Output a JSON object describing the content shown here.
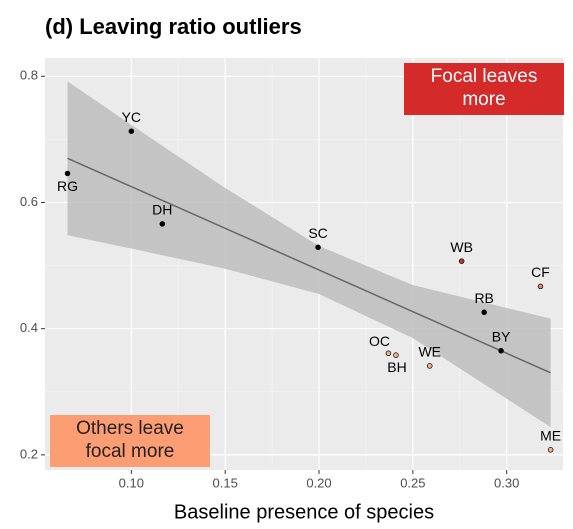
{
  "chart_data": {
    "type": "scatter",
    "title": "(d) Leaving ratio outliers",
    "x_label": "Baseline presence of species",
    "xlim": [
      0.054,
      0.33
    ],
    "ylim": [
      0.176,
      0.829
    ],
    "xticks": [
      {
        "value": 0.1,
        "label": "0.10"
      },
      0.15,
      {
        "value": 0.2,
        "label": "0.20"
      },
      0.25,
      {
        "value": 0.3,
        "label": "0.30"
      }
    ],
    "yticks": [
      0.2,
      0.4,
      0.6,
      0.8
    ],
    "grid": true,
    "points": {
      "labels": [
        "RG",
        "YC",
        "DH",
        "SC",
        "WB",
        "CF",
        "RB",
        "BY",
        "OC",
        "BH",
        "WE",
        "ME"
      ],
      "x": [
        0.066,
        0.1,
        0.1165,
        0.1995,
        0.276,
        0.318,
        0.288,
        0.297,
        0.237,
        0.241,
        0.259,
        0.3234
      ],
      "y": [
        0.646,
        0.713,
        0.566,
        0.529,
        0.507,
        0.467,
        0.426,
        0.365,
        0.361,
        0.358,
        0.341,
        0.208
      ],
      "colors": [
        "#000000",
        "#000000",
        "#000000",
        "#000000",
        "#c0392b",
        "#e8806a",
        "#000000",
        "#000000",
        "#f4b183",
        "#f4b183",
        "#f4b183",
        "#fcae91"
      ]
    },
    "fit": {
      "x": [
        0.066,
        0.3234
      ],
      "y": [
        0.67,
        0.33
      ],
      "color": "#666666"
    },
    "band": {
      "x": [
        0.066,
        0.1,
        0.15,
        0.2,
        0.25,
        0.3234
      ],
      "lower": [
        0.548,
        0.527,
        0.495,
        0.455,
        0.385,
        0.244
      ],
      "upper": [
        0.792,
        0.723,
        0.623,
        0.531,
        0.469,
        0.416
      ],
      "color": "#bdbdbd"
    },
    "annotations": [
      {
        "lines": [
          "Focal leaves",
          "more"
        ],
        "color": "#d42a2a",
        "text_color": "#ffffff",
        "corner": "top-right"
      },
      {
        "lines": [
          "Others leave",
          "focal more"
        ],
        "color": "#fc9d74",
        "text_color": "#222222",
        "corner": "bottom-left"
      }
    ]
  }
}
